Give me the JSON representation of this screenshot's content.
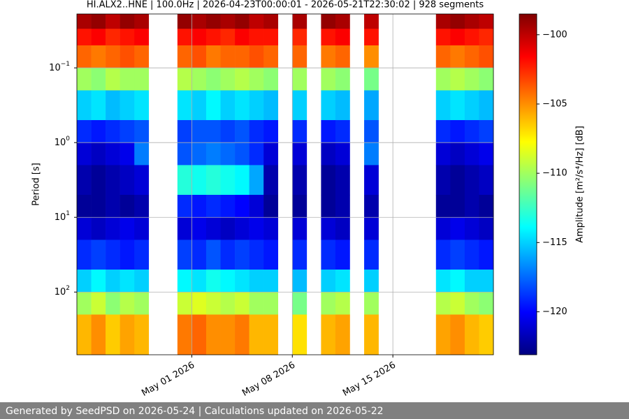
{
  "chart_data": {
    "type": "heatmap",
    "title": "HI.ALX2..HNE | 100.0Hz | 2026-04-23T00:00:01 - 2026-05-21T22:30:02 | 928 segments",
    "ylabel": "Period [s]",
    "colorbar_label": "Amplitude [m²/s⁴/Hz] [dB]",
    "colormap": "jet",
    "log_y": true,
    "y_inverted": true,
    "grid": true,
    "xlim": [
      "2026-04-23",
      "2026-05-22"
    ],
    "xticks": [
      {
        "value": "2026-05-01",
        "label": "May 01 2026"
      },
      {
        "value": "2026-05-08",
        "label": "May 08 2026"
      },
      {
        "value": "2026-05-15",
        "label": "May 15 2026"
      }
    ],
    "ylim": [
      0.019,
      690
    ],
    "yticks": [
      {
        "value": 0.1,
        "label": "10",
        "exponent": "−1"
      },
      {
        "value": 1,
        "label": "10",
        "exponent": "0"
      },
      {
        "value": 10,
        "label": "10",
        "exponent": "1"
      },
      {
        "value": 100,
        "label": "10",
        "exponent": "2"
      }
    ],
    "clim": [
      -123.1,
      -98.5
    ],
    "cticks": [
      {
        "value": -100,
        "label": "−100"
      },
      {
        "value": -105,
        "label": "−105"
      },
      {
        "value": -110,
        "label": "−110"
      },
      {
        "value": -115,
        "label": "−115"
      },
      {
        "value": -120,
        "label": "−120"
      }
    ],
    "x": [
      "2026-04-23",
      "2026-04-24",
      "2026-04-25",
      "2026-04-26",
      "2026-04-27",
      "2026-04-28",
      "2026-04-29",
      "2026-04-30",
      "2026-05-01",
      "2026-05-02",
      "2026-05-03",
      "2026-05-04",
      "2026-05-05",
      "2026-05-06",
      "2026-05-07",
      "2026-05-08",
      "2026-05-09",
      "2026-05-10",
      "2026-05-11",
      "2026-05-12",
      "2026-05-13",
      "2026-05-14",
      "2026-05-15",
      "2026-05-16",
      "2026-05-17",
      "2026-05-18",
      "2026-05-19",
      "2026-05-20",
      "2026-05-21"
    ],
    "y_bins": [
      0.019,
      0.03,
      0.05,
      0.1,
      0.2,
      0.5,
      1,
      2,
      5,
      10,
      20,
      50,
      100,
      200,
      690
    ],
    "z": [
      [
        -99.5,
        -99,
        -100,
        -99,
        -99.5,
        null,
        null,
        -99,
        -99.5,
        -99,
        -99.5,
        -99,
        -100,
        -99.5,
        null,
        -99.5,
        null,
        -99,
        -99.5,
        null,
        -100,
        null,
        null,
        null,
        null,
        -99.5,
        -99,
        -99.5,
        -100
      ],
      [
        -102,
        -101.5,
        -102.5,
        -102,
        -101.5,
        null,
        null,
        -102,
        -101.5,
        -102,
        -102.5,
        -101.5,
        -102,
        -102,
        null,
        -102.5,
        null,
        -102,
        -101.5,
        null,
        -102,
        null,
        null,
        null,
        null,
        -102,
        -101.5,
        -102,
        -102.5
      ],
      [
        -104,
        -104.5,
        -104,
        -103.5,
        -104,
        null,
        null,
        -104,
        -103.5,
        -104.5,
        -104,
        -104,
        -103.5,
        -104,
        null,
        -104,
        null,
        -104.5,
        -104,
        null,
        -105,
        null,
        null,
        null,
        null,
        -104,
        -104.5,
        -104,
        -103.5
      ],
      [
        -110,
        -110.5,
        -109.5,
        -110,
        -110,
        null,
        null,
        -109.5,
        -110,
        -110.5,
        -110,
        -109.5,
        -110,
        -110.5,
        null,
        -110,
        null,
        -110,
        -110.5,
        null,
        -111,
        null,
        null,
        null,
        null,
        -110,
        -109.5,
        -110,
        -110.5
      ],
      [
        -115,
        -114.5,
        -115.5,
        -115,
        -114.5,
        null,
        null,
        -114.5,
        -115,
        -114,
        -115,
        -114.5,
        -115,
        -115.5,
        null,
        -115,
        null,
        -115,
        -115.5,
        null,
        -116,
        null,
        null,
        null,
        null,
        -115,
        -114.5,
        -115,
        -115.5
      ],
      [
        -119,
        -119.5,
        -119,
        -118.5,
        -118,
        null,
        null,
        -118.5,
        -118,
        -118,
        -118.5,
        -118,
        -119,
        -119.5,
        null,
        -119,
        null,
        -119.5,
        -119,
        null,
        -118,
        null,
        null,
        null,
        null,
        -119,
        -119.5,
        -119,
        -118.5
      ],
      [
        -121,
        -121.5,
        -121,
        -120.5,
        -117,
        null,
        null,
        -118,
        -117.5,
        -117,
        -117.5,
        -118,
        -119,
        -121,
        null,
        -121,
        null,
        -121.5,
        -121,
        null,
        -117,
        null,
        null,
        null,
        null,
        -121,
        -121.5,
        -121,
        -120.5
      ],
      [
        -122,
        -122.5,
        -122,
        -121.5,
        -121,
        null,
        null,
        -113,
        -113.5,
        -113,
        -113.5,
        -114,
        -116,
        -122,
        null,
        -122,
        null,
        -122.5,
        -122,
        null,
        -121,
        null,
        null,
        null,
        null,
        -122,
        -122.5,
        -122,
        -121.5
      ],
      [
        -122.5,
        -122.5,
        -122,
        -122.5,
        -122,
        null,
        null,
        -119,
        -119.5,
        -119,
        -119.5,
        -120,
        -121,
        -122.5,
        null,
        -122.5,
        null,
        -122.5,
        -122,
        null,
        -122,
        null,
        null,
        null,
        null,
        -122.5,
        -122.5,
        -122,
        -122.5
      ],
      [
        -121,
        -121.5,
        -121,
        -120.5,
        -121,
        null,
        null,
        -121,
        -120.5,
        -121,
        -121.5,
        -121,
        -120.5,
        -121,
        null,
        -121,
        null,
        -121,
        -121.5,
        null,
        -121,
        null,
        null,
        null,
        null,
        -121,
        -120.5,
        -121,
        -121.5
      ],
      [
        -119,
        -118.5,
        -119,
        -119.5,
        -119,
        null,
        null,
        -118.5,
        -119,
        -118,
        -119,
        -118.5,
        -119,
        -119.5,
        null,
        -119,
        null,
        -119,
        -119.5,
        null,
        -119,
        null,
        null,
        null,
        null,
        -119,
        -118.5,
        -119,
        -119.5
      ],
      [
        -115,
        -114,
        -115,
        -114.5,
        -115,
        null,
        null,
        -114,
        -114.5,
        -113.5,
        -114,
        -114.5,
        -115,
        -115,
        null,
        -115.5,
        null,
        -115,
        -114.5,
        null,
        -115,
        null,
        null,
        null,
        null,
        -114.5,
        -114,
        -115,
        -115
      ],
      [
        -110,
        -109,
        -110.5,
        -109.5,
        -110,
        null,
        null,
        -109,
        -108.5,
        -109,
        -109.5,
        -109,
        -110,
        -110,
        null,
        -111,
        null,
        -110,
        -109.5,
        null,
        -110,
        null,
        null,
        null,
        null,
        -109.5,
        -109,
        -110,
        -110.5
      ],
      [
        -106,
        -105,
        -106.5,
        -105.5,
        -106,
        null,
        null,
        -104.5,
        -104,
        -105,
        -105,
        -104.5,
        -106,
        -106,
        null,
        -107,
        null,
        -106,
        -105.5,
        null,
        -106,
        null,
        null,
        null,
        null,
        -105.5,
        -105,
        -106,
        -106.5
      ]
    ]
  },
  "footer": {
    "text": "Generated by SeedPSD on 2026-05-24 | Calculations updated on 2026-05-22"
  }
}
